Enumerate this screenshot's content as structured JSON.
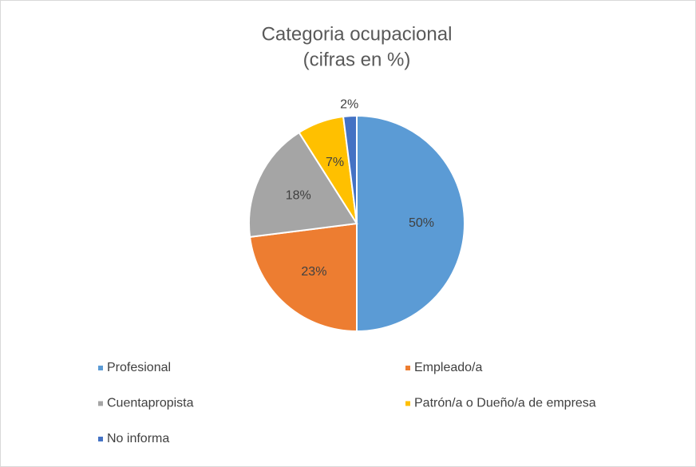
{
  "chart_data": {
    "type": "pie",
    "title": "Categoria ocupacional",
    "subtitle": "(cifras en %)",
    "categories": [
      "Profesional",
      "Empleado/a",
      "Cuentapropista",
      "Patrón/a o Dueño/a de empresa",
      "No informa"
    ],
    "values": [
      50,
      23,
      18,
      7,
      2
    ],
    "value_labels": [
      "50%",
      "23%",
      "18%",
      "7%",
      "2%"
    ],
    "colors": [
      "#5b9bd5",
      "#ed7d31",
      "#a5a5a5",
      "#ffc000",
      "#4472c4"
    ],
    "legend": "bottom"
  }
}
